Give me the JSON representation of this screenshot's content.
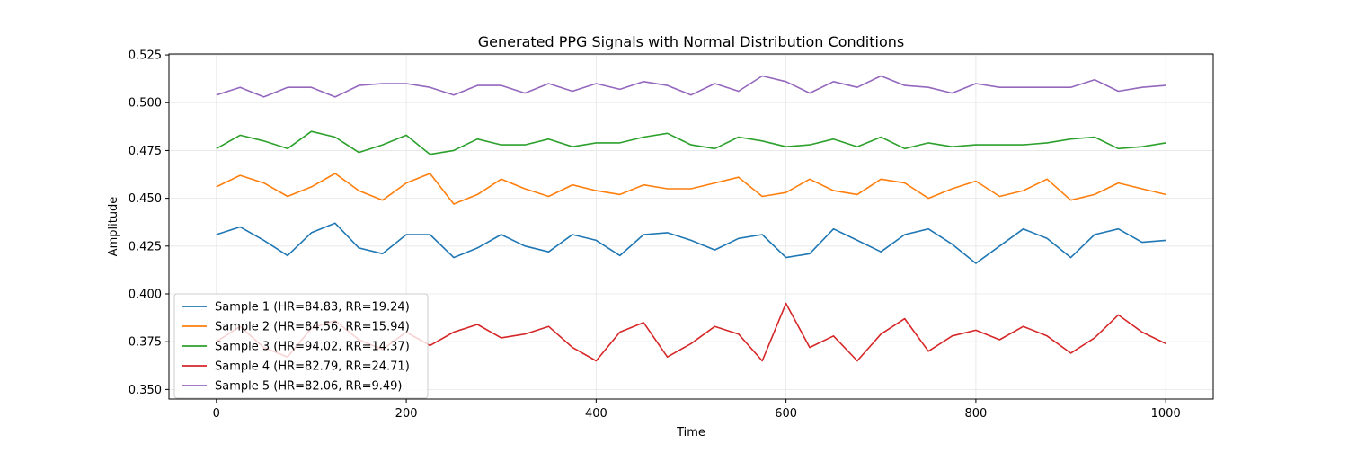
{
  "chart_data": {
    "type": "line",
    "title": "Generated PPG Signals with Normal Distribution Conditions",
    "xlabel": "Time",
    "ylabel": "Amplitude",
    "xlim": [
      -50,
      1050
    ],
    "ylim": [
      0.345,
      0.5255
    ],
    "xticks": [
      0,
      200,
      400,
      600,
      800,
      1000
    ],
    "xtick_labels": [
      "0",
      "200",
      "400",
      "600",
      "800",
      "1000"
    ],
    "yticks": [
      0.35,
      0.375,
      0.4,
      0.425,
      0.45,
      0.475,
      0.5,
      0.525
    ],
    "ytick_labels": [
      "0.350",
      "0.375",
      "0.400",
      "0.425",
      "0.450",
      "0.475",
      "0.500",
      "0.525"
    ],
    "grid": true,
    "legend_position": "lower-left",
    "x": [
      0,
      25,
      50,
      75,
      100,
      125,
      150,
      175,
      200,
      225,
      250,
      275,
      300,
      325,
      350,
      375,
      400,
      425,
      450,
      475,
      500,
      525,
      550,
      575,
      600,
      625,
      650,
      675,
      700,
      725,
      750,
      775,
      800,
      825,
      850,
      875,
      900,
      925,
      950,
      975,
      1000
    ],
    "series": [
      {
        "name": "Sample 1 (HR=84.83, RR=19.24)",
        "color": "#1f77b4",
        "values": [
          0.431,
          0.435,
          0.428,
          0.42,
          0.432,
          0.437,
          0.424,
          0.421,
          0.431,
          0.431,
          0.419,
          0.424,
          0.431,
          0.425,
          0.422,
          0.431,
          0.428,
          0.42,
          0.431,
          0.432,
          0.428,
          0.423,
          0.429,
          0.431,
          0.419,
          0.421,
          0.434,
          0.428,
          0.422,
          0.431,
          0.434,
          0.426,
          0.416,
          0.425,
          0.434,
          0.429,
          0.419,
          0.431,
          0.434,
          0.427,
          0.428
        ]
      },
      {
        "name": "Sample 2 (HR=84.56, RR=15.94)",
        "color": "#ff7f0e",
        "values": [
          0.456,
          0.462,
          0.458,
          0.451,
          0.456,
          0.463,
          0.454,
          0.449,
          0.458,
          0.463,
          0.447,
          0.452,
          0.46,
          0.455,
          0.451,
          0.457,
          0.454,
          0.452,
          0.457,
          0.455,
          0.455,
          0.458,
          0.461,
          0.451,
          0.453,
          0.46,
          0.454,
          0.452,
          0.46,
          0.458,
          0.45,
          0.455,
          0.459,
          0.451,
          0.454,
          0.46,
          0.449,
          0.452,
          0.458,
          0.455,
          0.452
        ]
      },
      {
        "name": "Sample 3 (HR=94.02, RR=14.37)",
        "color": "#2ca02c",
        "values": [
          0.476,
          0.483,
          0.48,
          0.476,
          0.485,
          0.482,
          0.474,
          0.478,
          0.483,
          0.473,
          0.475,
          0.481,
          0.478,
          0.478,
          0.481,
          0.477,
          0.479,
          0.479,
          0.482,
          0.484,
          0.478,
          0.476,
          0.482,
          0.48,
          0.477,
          0.478,
          0.481,
          0.477,
          0.482,
          0.476,
          0.479,
          0.477,
          0.478,
          0.478,
          0.478,
          0.479,
          0.481,
          0.482,
          0.476,
          0.477,
          0.479
        ]
      },
      {
        "name": "Sample 4 (HR=82.79, RR=24.71)",
        "color": "#d62728",
        "values": [
          0.375,
          0.383,
          0.372,
          0.367,
          0.382,
          0.386,
          0.376,
          0.371,
          0.38,
          0.373,
          0.38,
          0.384,
          0.377,
          0.379,
          0.383,
          0.372,
          0.365,
          0.38,
          0.385,
          0.367,
          0.374,
          0.383,
          0.379,
          0.365,
          0.395,
          0.372,
          0.378,
          0.365,
          0.379,
          0.387,
          0.37,
          0.378,
          0.381,
          0.376,
          0.383,
          0.378,
          0.369,
          0.377,
          0.389,
          0.38,
          0.374
        ]
      },
      {
        "name": "Sample 5 (HR=82.06, RR=9.49)",
        "color": "#9467bd",
        "values": [
          0.504,
          0.508,
          0.503,
          0.508,
          0.508,
          0.503,
          0.509,
          0.51,
          0.51,
          0.508,
          0.504,
          0.509,
          0.509,
          0.505,
          0.51,
          0.506,
          0.51,
          0.507,
          0.511,
          0.509,
          0.504,
          0.51,
          0.506,
          0.514,
          0.511,
          0.505,
          0.511,
          0.508,
          0.514,
          0.509,
          0.508,
          0.505,
          0.51,
          0.508,
          0.508,
          0.508,
          0.508,
          0.512,
          0.506,
          0.508,
          0.509
        ]
      }
    ]
  }
}
